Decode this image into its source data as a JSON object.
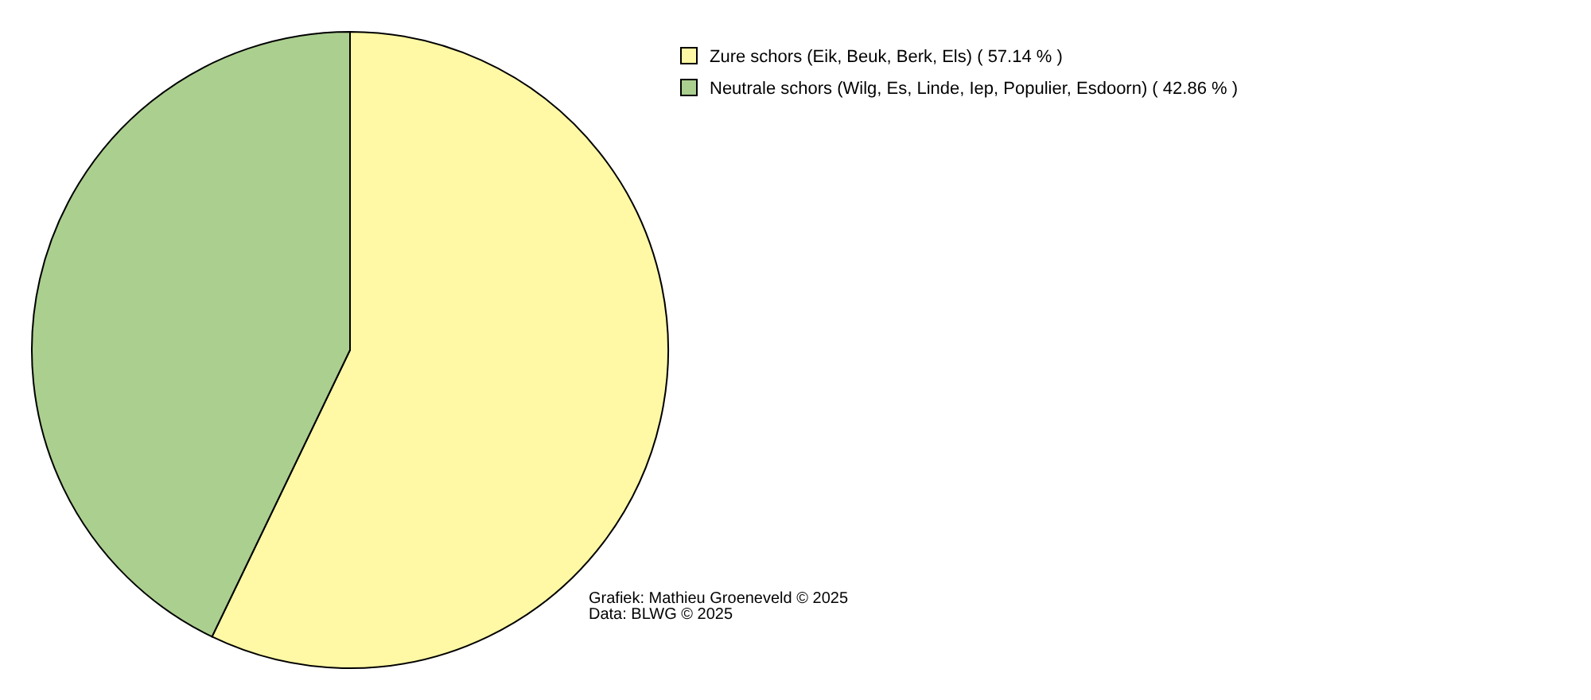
{
  "chart_data": {
    "type": "pie",
    "categories": [
      "Zure schors (Eik, Beuk, Berk, Els) ( 57.14 % )",
      "Neutrale schors (Wilg, Es, Linde, Iep, Populier, Esdoorn) ( 42.86 % )"
    ],
    "values": [
      57.14,
      42.86
    ],
    "colors": [
      "#fff8a5",
      "#abcf8f"
    ],
    "legend": "top right",
    "annotations": [
      "Grafiek: Mathieu Groeneveld © 2025",
      "Data: BLWG © 2025"
    ]
  }
}
